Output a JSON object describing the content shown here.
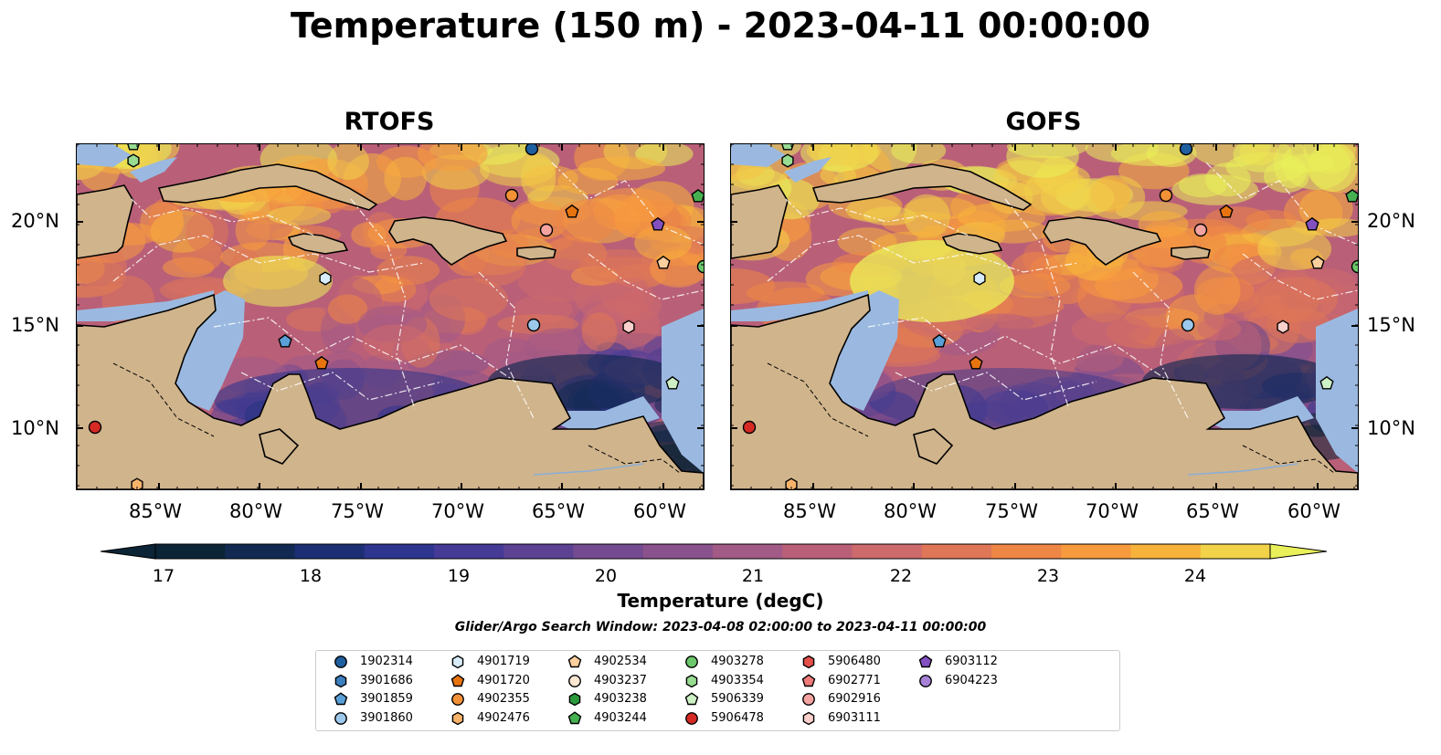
{
  "title": "Temperature (150 m) - 2023-04-11 00:00:00",
  "panels": [
    {
      "title": "RTOFS"
    },
    {
      "title": "GOFS"
    }
  ],
  "axes": {
    "lon_ticks": [
      "85°W",
      "80°W",
      "75°W",
      "70°W",
      "65°W",
      "60°W"
    ],
    "lat_ticks": [
      "20°N",
      "15°N",
      "10°N"
    ]
  },
  "colorbar": {
    "label": "Temperature (degC)",
    "ticks": [
      "17",
      "18",
      "19",
      "20",
      "21",
      "22",
      "23",
      "24"
    ],
    "range": [
      16.75,
      24.5
    ],
    "colors": [
      "#0b2436",
      "#122a52",
      "#1c2f74",
      "#2e358e",
      "#453a96",
      "#5d4294",
      "#744b90",
      "#8a528c",
      "#a25a86",
      "#b96078",
      "#cd6a6c",
      "#df7658",
      "#ee8645",
      "#f79a3e",
      "#f7b23c",
      "#f2d248",
      "#eaf05a"
    ]
  },
  "map_colors": {
    "land": "#d0b48c",
    "shallow": "#9bb9e0",
    "deep": "#0b2436"
  },
  "search_window": "Glider/Argo Search Window: 2023-04-08 02:00:00 to 2023-04-11 00:00:00",
  "legend": [
    {
      "id": "1902314",
      "marker": "circle",
      "color": "#1f5f9f"
    },
    {
      "id": "3901686",
      "marker": "hexagon",
      "color": "#3b7fc0"
    },
    {
      "id": "3901859",
      "marker": "pentagon",
      "color": "#5aa0d8"
    },
    {
      "id": "3901860",
      "marker": "circle",
      "color": "#9cc8ec"
    },
    {
      "id": "4901719",
      "marker": "hexagon",
      "color": "#d8ecfa"
    },
    {
      "id": "4901720",
      "marker": "pentagon",
      "color": "#e8740f"
    },
    {
      "id": "4902355",
      "marker": "circle",
      "color": "#f39136"
    },
    {
      "id": "4902476",
      "marker": "hexagon",
      "color": "#f8b36a"
    },
    {
      "id": "4902534",
      "marker": "pentagon",
      "color": "#fccf9e"
    },
    {
      "id": "4903237",
      "marker": "circle",
      "color": "#fde8d2"
    },
    {
      "id": "4903238",
      "marker": "hexagon",
      "color": "#2a9a3c"
    },
    {
      "id": "4903244",
      "marker": "pentagon",
      "color": "#45b050"
    },
    {
      "id": "4903278",
      "marker": "circle",
      "color": "#6cc86b"
    },
    {
      "id": "4903354",
      "marker": "hexagon",
      "color": "#98dc92"
    },
    {
      "id": "5906339",
      "marker": "pentagon",
      "color": "#cdf0c4"
    },
    {
      "id": "5906478",
      "marker": "circle",
      "color": "#d62a24"
    },
    {
      "id": "5906480",
      "marker": "hexagon",
      "color": "#e44f4a"
    },
    {
      "id": "6902771",
      "marker": "pentagon",
      "color": "#ee7b78"
    },
    {
      "id": "6902916",
      "marker": "circle",
      "color": "#f4a3a0"
    },
    {
      "id": "6903111",
      "marker": "hexagon",
      "color": "#fad0cc"
    },
    {
      "id": "6903112",
      "marker": "pentagon",
      "color": "#8350c0"
    },
    {
      "id": "6904223",
      "marker": "circle",
      "color": "#a882d8"
    }
  ]
}
